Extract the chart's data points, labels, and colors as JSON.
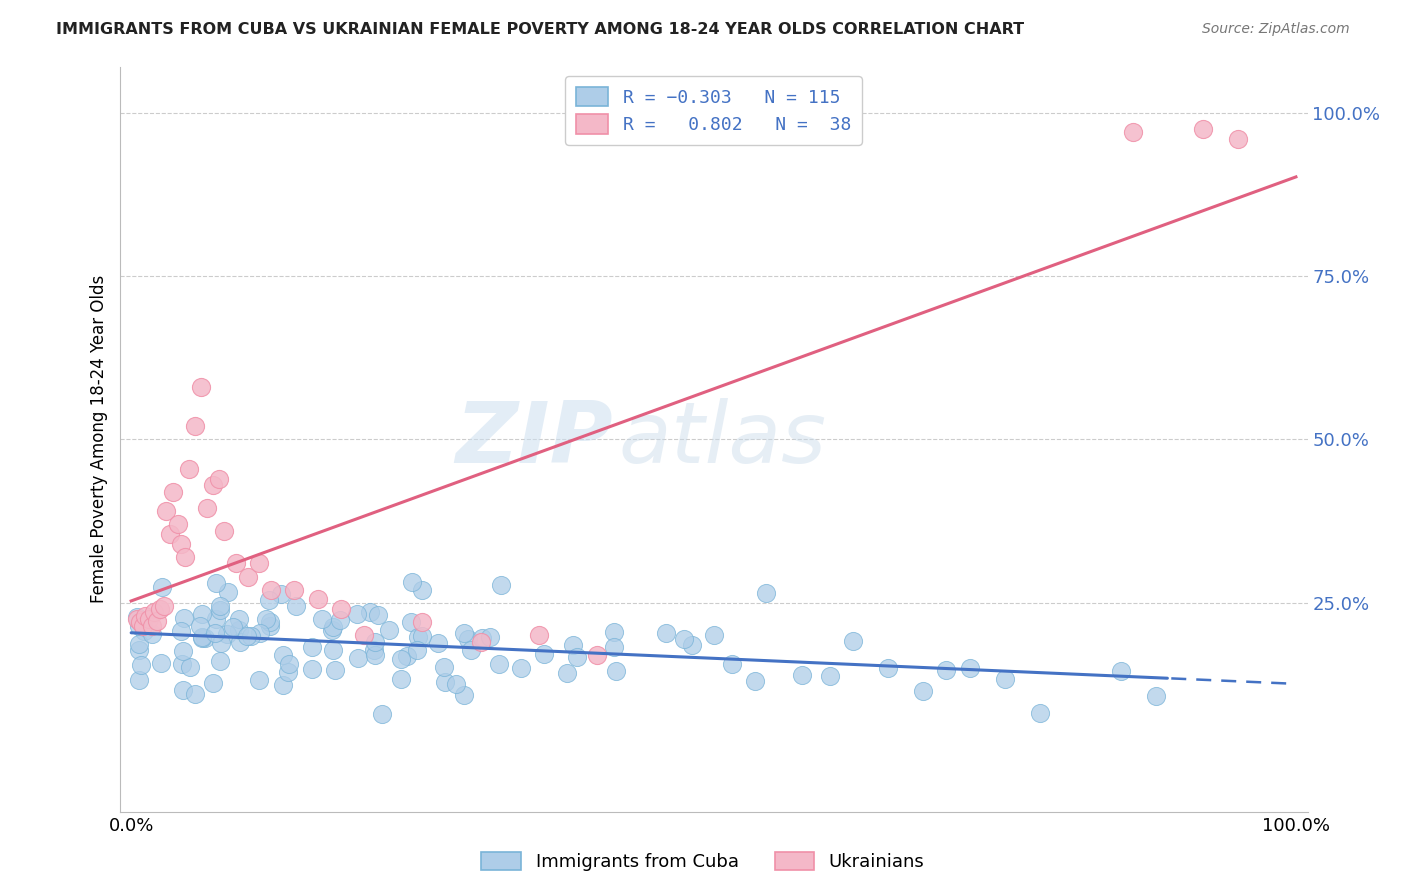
{
  "title": "IMMIGRANTS FROM CUBA VS UKRAINIAN FEMALE POVERTY AMONG 18-24 YEAR OLDS CORRELATION CHART",
  "source": "Source: ZipAtlas.com",
  "ylabel": "Female Poverty Among 18-24 Year Olds",
  "cuba_color": "#7ab4d8",
  "ukraine_color": "#f090a8",
  "cuba_line_color": "#4472c4",
  "ukraine_line_color": "#e06080",
  "cuba_scatter_fill": "#aecde8",
  "ukraine_scatter_fill": "#f4b8c8",
  "grid_color": "#cccccc",
  "right_axis_color": "#4472c4",
  "title_color": "#222222",
  "background_color": "#ffffff",
  "cuba_R": -0.303,
  "cuba_N": 115,
  "ukraine_R": 0.802,
  "ukraine_N": 38,
  "watermark_zip": "ZIP",
  "watermark_atlas": "atlas"
}
